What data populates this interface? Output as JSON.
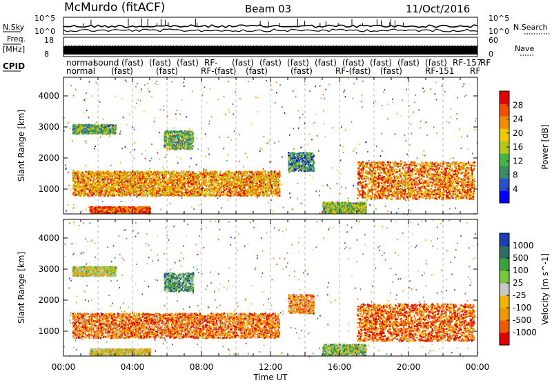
{
  "header": {
    "site": "McMurdo (fitACF)",
    "beam": "Beam 03",
    "date": "11/Oct/2016"
  },
  "strip": {
    "nsky_label": "N.Sky",
    "nsearch_label": "N.Search",
    "nsky_ticks": [
      "10^5",
      "10^0"
    ],
    "nsearch_ticks": [
      "10^5",
      "10^0"
    ],
    "freq_label_1": "Freq.",
    "freq_label_2": "[MHz]",
    "freq_ticks": [
      "18",
      "8"
    ],
    "nave_label": "Nave",
    "nave_ticks": [
      "60",
      "0"
    ],
    "cpid_label": "CPID",
    "cpid_row1": [
      "normal",
      "sound",
      "(fast)",
      "(fast)",
      "(fast)",
      "RF-",
      "(fast)",
      "(fast)",
      "(fast)",
      "(fast)",
      "(fast)",
      "(fast)",
      "(fast)",
      "(fast)",
      "RF-157",
      "RF"
    ],
    "cpid_row2": [
      "normal",
      "(fast)",
      "(fast)",
      "RF-(fast)",
      "(fast)",
      "(fast)",
      "RF-(fast)",
      "(fast)",
      "RF-151",
      "RF"
    ]
  },
  "axes": {
    "ylabel": "Slant Range [km]",
    "xlabel": "Time UT",
    "yticks": [
      "4000",
      "3000",
      "2000",
      "1000"
    ],
    "xticks": [
      "00:00",
      "04:00",
      "08:00",
      "12:00",
      "16:00",
      "20:00",
      "00:00"
    ]
  },
  "chart_data": [
    {
      "type": "heatmap",
      "name": "power",
      "x_range": [
        "00:00",
        "24:00"
      ],
      "ylim": [
        200,
        4600
      ],
      "colorbar": {
        "label": "Power [dB]",
        "ticks": [
          "28",
          "24",
          "20",
          "16",
          "12",
          "8",
          "4"
        ],
        "range": [
          0,
          30
        ],
        "colors": [
          "#0000ff",
          "#2850c8",
          "#3c8c64",
          "#46b446",
          "#b4c814",
          "#f0c800",
          "#f08c00",
          "#f05000",
          "#e10000"
        ]
      },
      "regions": [
        {
          "t0": 0.5,
          "t1": 3.0,
          "r0": 2800,
          "r1": 3100,
          "level": 0.35
        },
        {
          "t0": 0.5,
          "t1": 12.5,
          "r0": 800,
          "r1": 1600,
          "level": 0.7
        },
        {
          "t0": 1.5,
          "t1": 5.0,
          "r0": 250,
          "r1": 450,
          "level": 0.85
        },
        {
          "t0": 5.8,
          "t1": 7.5,
          "r0": 2300,
          "r1": 2900,
          "level": 0.4
        },
        {
          "t0": 13.0,
          "t1": 14.5,
          "r0": 1600,
          "r1": 2200,
          "level": 0.3
        },
        {
          "t0": 15.0,
          "t1": 17.5,
          "r0": 250,
          "r1": 600,
          "level": 0.45
        },
        {
          "t0": 17.0,
          "t1": 23.8,
          "r0": 700,
          "r1": 1900,
          "level": 0.75
        }
      ]
    },
    {
      "type": "heatmap",
      "name": "velocity",
      "x_range": [
        "00:00",
        "24:00"
      ],
      "ylim": [
        200,
        4600
      ],
      "colorbar": {
        "label": "Velocity [m s^-1]",
        "ticks": [
          "1000",
          "500",
          "100",
          "25",
          "-25",
          "-100",
          "-500",
          "-1000"
        ],
        "range": [
          -1000,
          1000
        ],
        "colors": [
          "#e10000",
          "#f05a00",
          "#f09600",
          "#f0b400",
          "#c8c8c8",
          "#78c83c",
          "#3ca03c",
          "#2d6e64",
          "#1e3cb4"
        ]
      },
      "regions": [
        {
          "t0": 0.5,
          "t1": 3.0,
          "r0": 2800,
          "r1": 3100,
          "level": 0.5
        },
        {
          "t0": 0.5,
          "t1": 12.5,
          "r0": 800,
          "r1": 1600,
          "level": 0.25
        },
        {
          "t0": 1.5,
          "t1": 5.0,
          "r0": 250,
          "r1": 450,
          "level": 0.45
        },
        {
          "t0": 5.8,
          "t1": 7.5,
          "r0": 2300,
          "r1": 2900,
          "level": 0.7
        },
        {
          "t0": 13.0,
          "t1": 14.5,
          "r0": 1600,
          "r1": 2200,
          "level": 0.3
        },
        {
          "t0": 15.0,
          "t1": 17.5,
          "r0": 250,
          "r1": 600,
          "level": 0.6
        },
        {
          "t0": 17.0,
          "t1": 23.8,
          "r0": 700,
          "r1": 1900,
          "level": 0.2
        }
      ]
    }
  ]
}
